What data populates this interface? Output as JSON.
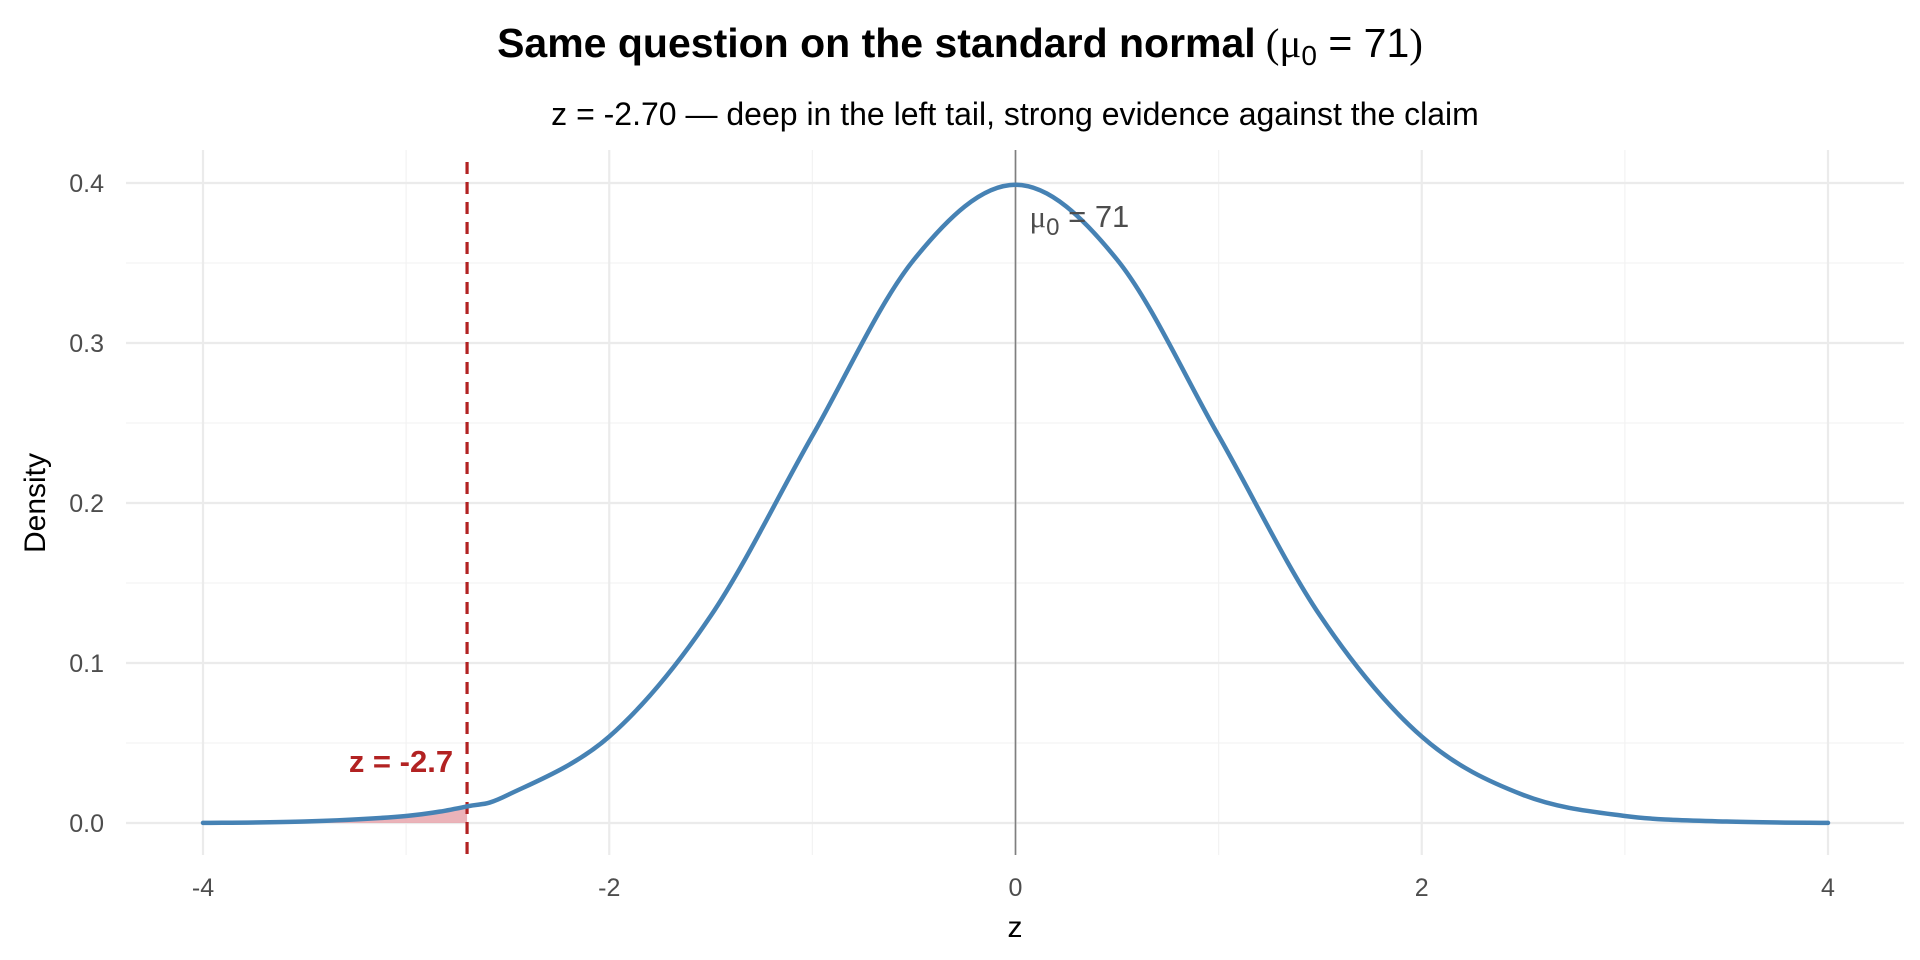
{
  "chart_data": {
    "type": "area",
    "title": "Same question on the standard normal",
    "title_math": {
      "symbol": "μ",
      "subscript": "0",
      "text": " = 71"
    },
    "subtitle": "z = -2.70 — deep in the left tail, strong evidence against the claim",
    "xlabel": "z",
    "ylabel": "Density",
    "xlim": [
      -4,
      4
    ],
    "ylim": [
      0,
      0.4
    ],
    "x_ticks": [
      -4,
      -2,
      0,
      2,
      4
    ],
    "x_tick_labels": [
      "-4",
      "-2",
      "0",
      "2",
      "4"
    ],
    "y_ticks": [
      0.0,
      0.1,
      0.2,
      0.3,
      0.4
    ],
    "y_tick_labels": [
      "0.0",
      "0.1",
      "0.2",
      "0.3",
      "0.4"
    ],
    "grid": true,
    "series": [
      {
        "x": [
          -4.0,
          -3.5,
          -3.0,
          -2.7,
          -2.5,
          -2.0,
          -1.5,
          -1.0,
          -0.5,
          0.0,
          0.5,
          1.0,
          1.5,
          2.0,
          2.5,
          3.0,
          3.5,
          4.0
        ],
        "y": [
          0.0001,
          0.0009,
          0.0044,
          0.0104,
          0.0175,
          0.054,
          0.1295,
          0.242,
          0.3521,
          0.3989,
          0.3521,
          0.242,
          0.1295,
          0.054,
          0.0175,
          0.0044,
          0.0009,
          0.0001
        ]
      }
    ],
    "shaded_region": {
      "x_from": -4,
      "x_to": -2.7
    },
    "reference_lines": [
      {
        "x": 0,
        "style": "solid"
      },
      {
        "x": -2.7,
        "style": "dashed"
      }
    ],
    "annotations": [
      {
        "x": 0,
        "symbol": "μ",
        "subscript": "0",
        "text": " = 71"
      },
      {
        "x": -2.7,
        "text": "z = -2.7"
      }
    ],
    "colors": {
      "curve": "#4682b4",
      "tail_fill": "#e8a6ad",
      "critical": "#b22222",
      "center_line": "#7f7f7f",
      "grid_major": "#ebebeb",
      "grid_minor": "#f3f3f3"
    }
  }
}
